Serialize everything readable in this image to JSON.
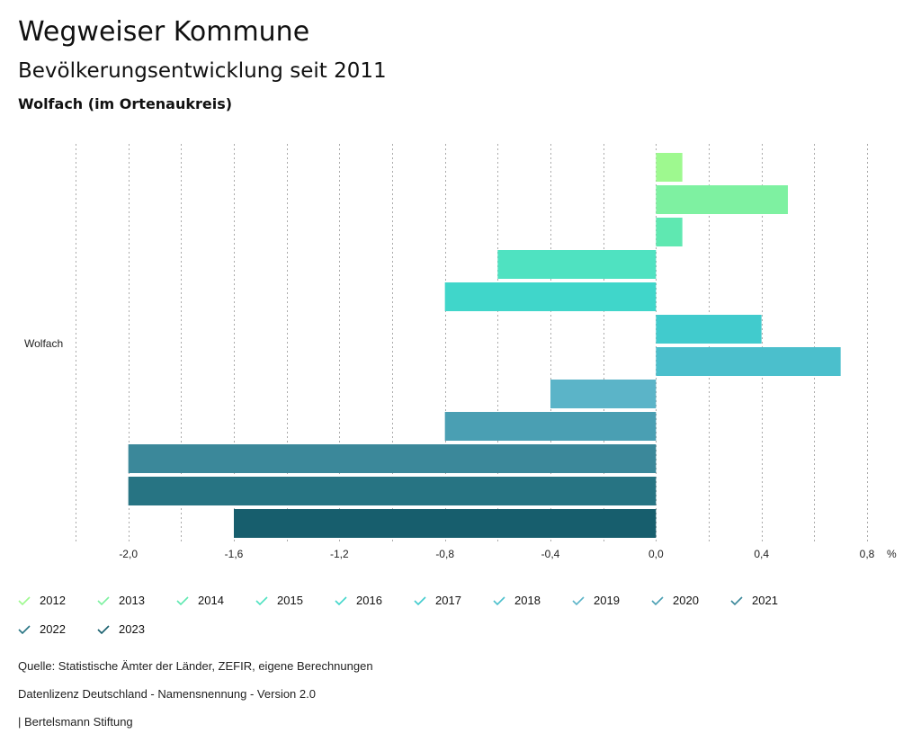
{
  "header": {
    "title": "Wegweiser Kommune",
    "subtitle": "Bevölkerungsentwicklung seit 2011",
    "region": "Wolfach (im Ortenaukreis)"
  },
  "chart_data": {
    "type": "bar",
    "orientation": "horizontal",
    "categories": [
      "Wolfach"
    ],
    "series": [
      {
        "name": "2012",
        "values": [
          0.1
        ],
        "color": "#9ef98f"
      },
      {
        "name": "2013",
        "values": [
          0.5
        ],
        "color": "#7ef1a1"
      },
      {
        "name": "2014",
        "values": [
          0.1
        ],
        "color": "#5fe8b1"
      },
      {
        "name": "2015",
        "values": [
          -0.6
        ],
        "color": "#4fe2c1"
      },
      {
        "name": "2016",
        "values": [
          -0.8
        ],
        "color": "#40d6ca"
      },
      {
        "name": "2017",
        "values": [
          0.4
        ],
        "color": "#41cbcd"
      },
      {
        "name": "2018",
        "values": [
          0.7
        ],
        "color": "#4bbfcc"
      },
      {
        "name": "2019",
        "values": [
          -0.4
        ],
        "color": "#5bb4c8"
      },
      {
        "name": "2020",
        "values": [
          -0.8
        ],
        "color": "#4a9fb3"
      },
      {
        "name": "2021",
        "values": [
          -2.0
        ],
        "color": "#3b889a"
      },
      {
        "name": "2022",
        "values": [
          -2.0
        ],
        "color": "#277483"
      },
      {
        "name": "2023",
        "values": [
          -1.6
        ],
        "color": "#175e6d"
      }
    ],
    "xlim": [
      -2.2,
      0.8
    ],
    "xticks": [
      "-2,0",
      "-1,6",
      "-1,2",
      "-0,8",
      "-0,4",
      "0,0",
      "0,4",
      "0,8"
    ],
    "xtick_values": [
      -2.0,
      -1.6,
      -1.2,
      -0.8,
      -0.4,
      0.0,
      0.4,
      0.8
    ],
    "xunit": "%",
    "grid": true,
    "legend_position": "bottom"
  },
  "footer": {
    "source": "Quelle: Statistische Ämter der Länder, ZEFIR, eigene Berechnungen",
    "license": "Datenlizenz Deutschland - Namensnennung - Version 2.0",
    "publisher": "| Bertelsmann Stiftung"
  }
}
